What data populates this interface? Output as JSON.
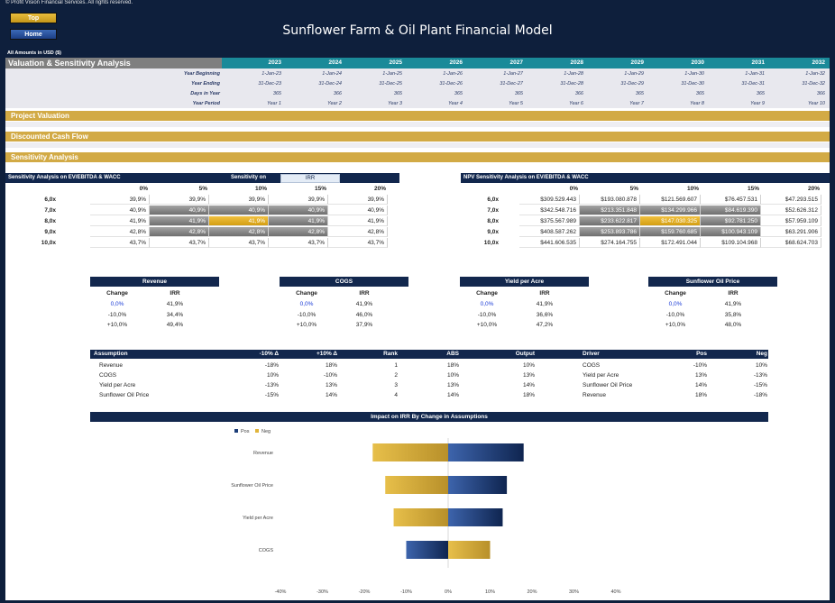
{
  "app": {
    "copyright": "© Profit Vision Financial Services. All rights reserved.",
    "title": "Sunflower Farm & Oil Plant Financial Model",
    "amounts_note": "All Amounts in  USD ($)",
    "nav": {
      "top": "Top",
      "home": "Home"
    }
  },
  "timeline": {
    "section_title": "Valuation & Sensitivity Analysis",
    "years": [
      "2023",
      "2024",
      "2025",
      "2026",
      "2027",
      "2028",
      "2029",
      "2030",
      "2031",
      "2032"
    ],
    "row_labels": [
      "Year Beginning",
      "Year Ending",
      "Days in Year",
      "Year Period"
    ],
    "year_beginning": [
      "1-Jan-23",
      "1-Jan-24",
      "1-Jan-25",
      "1-Jan-26",
      "1-Jan-27",
      "1-Jan-28",
      "1-Jan-29",
      "1-Jan-30",
      "1-Jan-31",
      "1-Jan-32"
    ],
    "year_ending": [
      "31-Dec-23",
      "31-Dec-24",
      "31-Dec-25",
      "31-Dec-26",
      "31-Dec-27",
      "31-Dec-28",
      "31-Dec-29",
      "31-Dec-30",
      "31-Dec-31",
      "31-Dec-32"
    ],
    "days": [
      "365",
      "366",
      "365",
      "365",
      "365",
      "366",
      "365",
      "365",
      "365",
      "366"
    ],
    "period": [
      "Year 1",
      "Year 2",
      "Year 3",
      "Year 4",
      "Year 5",
      "Year 6",
      "Year 7",
      "Year 8",
      "Year 9",
      "Year 10"
    ]
  },
  "sections": {
    "project_valuation": "Project Valuation",
    "dcf": "Discounted Cash Flow",
    "sensitivity": "Sensitivity Analysis"
  },
  "irr_sens": {
    "title": "Sensitivity Analysis on EV/EBITDA & WACC",
    "sens_on_label": "Sensitivity on",
    "sens_on_value": "IRR",
    "cols": [
      "0%",
      "5%",
      "10%",
      "15%",
      "20%"
    ],
    "rows": [
      "6,0x",
      "7,0x",
      "8,0x",
      "9,0x",
      "10,0x"
    ],
    "values": [
      [
        "39,9%",
        "39,9%",
        "39,9%",
        "39,9%",
        "39,9%"
      ],
      [
        "40,9%",
        "40,9%",
        "40,9%",
        "40,9%",
        "40,9%"
      ],
      [
        "41,9%",
        "41,9%",
        "41,9%",
        "41,9%",
        "41,9%"
      ],
      [
        "42,8%",
        "42,8%",
        "42,8%",
        "42,8%",
        "42,8%"
      ],
      [
        "43,7%",
        "43,7%",
        "43,7%",
        "43,7%",
        "43,7%"
      ]
    ]
  },
  "npv_sens": {
    "title": "NPV Sensitivity Analysis on EV/EBITDA & WACC",
    "cols": [
      "0%",
      "5%",
      "10%",
      "15%",
      "20%"
    ],
    "rows": [
      "6,0x",
      "7,0x",
      "8,0x",
      "9,0x",
      "10,0x"
    ],
    "values": [
      [
        "$309.529.443",
        "$193.080.878",
        "$121.569.607",
        "$76.457.531",
        "$47.293.515"
      ],
      [
        "$342.548.716",
        "$213.351.848",
        "$134.299.966",
        "$84.619.390",
        "$52.626.312"
      ],
      [
        "$375.567.989",
        "$233.622.817",
        "$147.030.325",
        "$92.781.250",
        "$57.959.109"
      ],
      [
        "$408.587.262",
        "$253.893.786",
        "$159.760.685",
        "$100.943.109",
        "$63.291.906"
      ],
      [
        "$441.606.535",
        "$274.164.755",
        "$172.491.044",
        "$109.104.968",
        "$68.624.703"
      ]
    ]
  },
  "mini_tables": [
    {
      "title": "Revenue",
      "h1": "Change",
      "h2": "IRR",
      "rows": [
        [
          "0,0%",
          "41,9%"
        ],
        [
          "-10,0%",
          "34,4%"
        ],
        [
          "+10,0%",
          "49,4%"
        ]
      ]
    },
    {
      "title": "COGS",
      "h1": "Change",
      "h2": "IRR",
      "rows": [
        [
          "0,0%",
          "41,9%"
        ],
        [
          "-10,0%",
          "46,0%"
        ],
        [
          "+10,0%",
          "37,9%"
        ]
      ]
    },
    {
      "title": "Yield per Acre",
      "h1": "Change",
      "h2": "IRR",
      "rows": [
        [
          "0,0%",
          "41,9%"
        ],
        [
          "-10,0%",
          "36,6%"
        ],
        [
          "+10,0%",
          "47,2%"
        ]
      ]
    },
    {
      "title": "Sunflower Oil Price",
      "h1": "Change",
      "h2": "IRR",
      "rows": [
        [
          "0,0%",
          "41,9%"
        ],
        [
          "-10,0%",
          "35,8%"
        ],
        [
          "+10,0%",
          "48,0%"
        ]
      ]
    }
  ],
  "assumptions": {
    "headers": [
      "Assumption",
      "-10% Δ",
      "+10% Δ",
      "Rank",
      "ABS",
      "Output"
    ],
    "rows": [
      [
        "Revenue",
        "-18%",
        "18%",
        "1",
        "18%",
        "10%"
      ],
      [
        "COGS",
        "10%",
        "-10%",
        "2",
        "10%",
        "13%"
      ],
      [
        "Yield per Acre",
        "-13%",
        "13%",
        "3",
        "13%",
        "14%"
      ],
      [
        "Sunflower Oil Price",
        "-15%",
        "14%",
        "4",
        "14%",
        "18%"
      ]
    ]
  },
  "drivers": {
    "headers": [
      "Driver",
      "Pos",
      "Neg"
    ],
    "rows": [
      [
        "COGS",
        "-10%",
        "10%"
      ],
      [
        "Yield per Acre",
        "13%",
        "-13%"
      ],
      [
        "Sunflower Oil Price",
        "14%",
        "-15%"
      ],
      [
        "Revenue",
        "18%",
        "-18%"
      ]
    ]
  },
  "chart_data": {
    "type": "bar",
    "orientation": "horizontal",
    "title": "Impact on IRR By Change in Assumptions",
    "categories": [
      "Revenue",
      "Sunflower Oil Price",
      "Yield per Acre",
      "COGS"
    ],
    "series": [
      {
        "name": "Pos",
        "values": [
          18,
          14,
          13,
          -10
        ],
        "color": "#1c3d78"
      },
      {
        "name": "Neg",
        "values": [
          -18,
          -15,
          -13,
          10
        ],
        "color": "#e0b43a"
      }
    ],
    "x_ticks": [
      "-40%",
      "-30%",
      "-20%",
      "-10%",
      "0%",
      "10%",
      "20%",
      "30%",
      "40%"
    ],
    "xlim": [
      -40,
      40
    ],
    "legend": "top-left",
    "grid": false
  }
}
